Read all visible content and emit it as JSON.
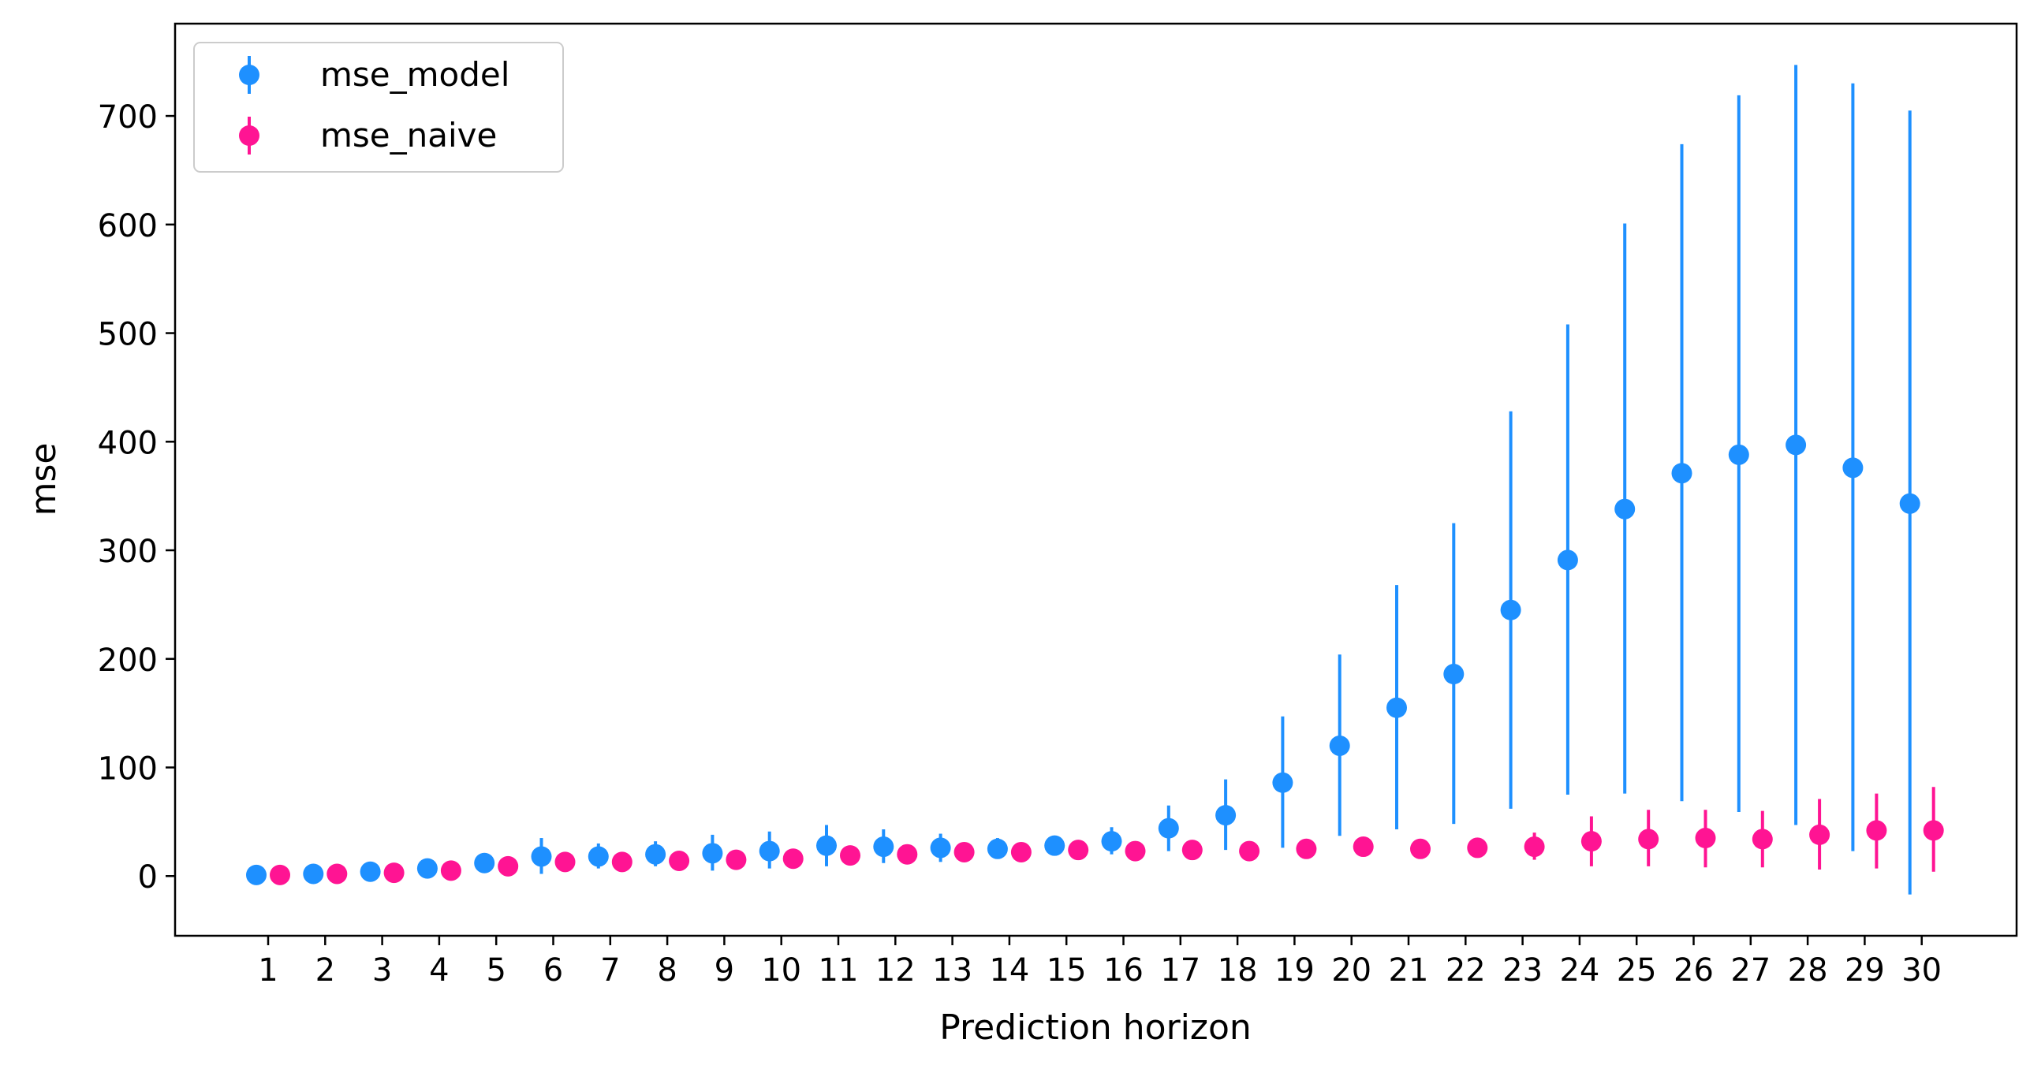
{
  "chart_data": {
    "type": "scatter",
    "subtype": "errorbar",
    "title": "",
    "xlabel": "Prediction horizon",
    "ylabel": "mse",
    "x": [
      1,
      2,
      3,
      4,
      5,
      6,
      7,
      8,
      9,
      10,
      11,
      12,
      13,
      14,
      15,
      16,
      17,
      18,
      19,
      20,
      21,
      22,
      23,
      24,
      25,
      26,
      27,
      28,
      29,
      30
    ],
    "xtick_labels": [
      "1",
      "2",
      "3",
      "4",
      "5",
      "6",
      "7",
      "8",
      "9",
      "10",
      "11",
      "12",
      "13",
      "14",
      "15",
      "16",
      "17",
      "18",
      "19",
      "20",
      "21",
      "22",
      "23",
      "24",
      "25",
      "26",
      "27",
      "28",
      "29",
      "30"
    ],
    "ylim": [
      -55,
      785
    ],
    "yticks": [
      0,
      100,
      200,
      300,
      400,
      500,
      600,
      700
    ],
    "ytick_labels": [
      "0",
      "100",
      "200",
      "300",
      "400",
      "500",
      "600",
      "700"
    ],
    "grid": false,
    "legend_position": "upper-left",
    "series": [
      {
        "name": "mse_model",
        "color": "#1E90FF",
        "values": [
          1,
          2,
          4,
          7,
          12,
          18,
          18,
          20,
          21,
          23,
          28,
          27,
          26,
          25,
          28,
          32,
          44,
          56,
          86,
          120,
          155,
          186,
          245,
          291,
          338,
          371,
          388,
          397,
          376,
          343
        ],
        "lower": [
          0,
          0,
          1,
          3,
          9,
          2,
          7,
          9,
          5,
          7,
          9,
          12,
          13,
          17,
          23,
          20,
          23,
          24,
          26,
          37,
          43,
          48,
          62,
          75,
          76,
          69,
          59,
          47,
          23,
          -17
        ],
        "upper": [
          2,
          4,
          7,
          11,
          15,
          35,
          30,
          32,
          38,
          41,
          47,
          43,
          39,
          35,
          33,
          45,
          65,
          89,
          147,
          204,
          268,
          325,
          428,
          508,
          601,
          674,
          719,
          747,
          730,
          705
        ]
      },
      {
        "name": "mse_naive",
        "color": "#FF1493",
        "values": [
          1,
          2,
          3,
          5,
          9,
          13,
          13,
          14,
          15,
          16,
          19,
          20,
          22,
          22,
          24,
          23,
          24,
          23,
          25,
          27,
          25,
          26,
          27,
          32,
          34,
          35,
          34,
          38,
          42,
          42
        ],
        "lower": [
          1,
          2,
          3,
          5,
          9,
          13,
          13,
          14,
          15,
          16,
          19,
          20,
          22,
          22,
          24,
          23,
          24,
          23,
          25,
          27,
          25,
          26,
          15,
          9,
          9,
          8,
          8,
          6,
          7,
          4
        ],
        "upper": [
          1,
          2,
          3,
          5,
          9,
          13,
          13,
          14,
          15,
          16,
          19,
          20,
          22,
          22,
          24,
          23,
          24,
          23,
          25,
          27,
          25,
          26,
          40,
          55,
          61,
          61,
          60,
          71,
          76,
          82
        ]
      }
    ]
  }
}
